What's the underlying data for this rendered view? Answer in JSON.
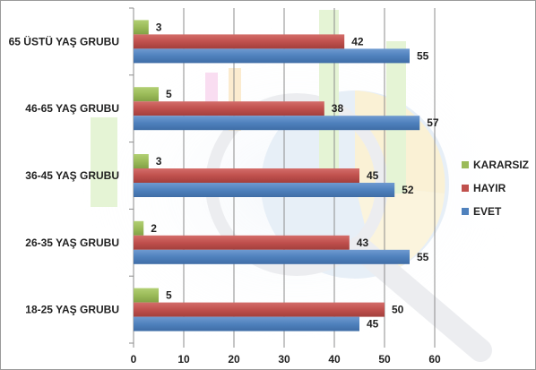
{
  "chart_data": {
    "type": "bar",
    "orientation": "horizontal",
    "categories": [
      "18-25 YAŞ GRUBU",
      "26-35 YAŞ GRUBU",
      "36-45 YAŞ GRUBU",
      "46-65 YAŞ GRUBU",
      "65 ÜSTÜ YAŞ GRUBU"
    ],
    "series": [
      {
        "name": "KARARSIZ",
        "color": "#9bbb59",
        "values": [
          5,
          2,
          3,
          5,
          3
        ]
      },
      {
        "name": "HAYIR",
        "color": "#c0504d",
        "values": [
          50,
          43,
          45,
          38,
          42
        ]
      },
      {
        "name": "EVET",
        "color": "#4f81bd",
        "values": [
          45,
          55,
          52,
          57,
          55
        ]
      }
    ],
    "xlim": [
      0,
      60
    ],
    "xticks": [
      0,
      10,
      20,
      30,
      40,
      50,
      60
    ],
    "grid": true,
    "legend": "right",
    "data_labels": true
  }
}
